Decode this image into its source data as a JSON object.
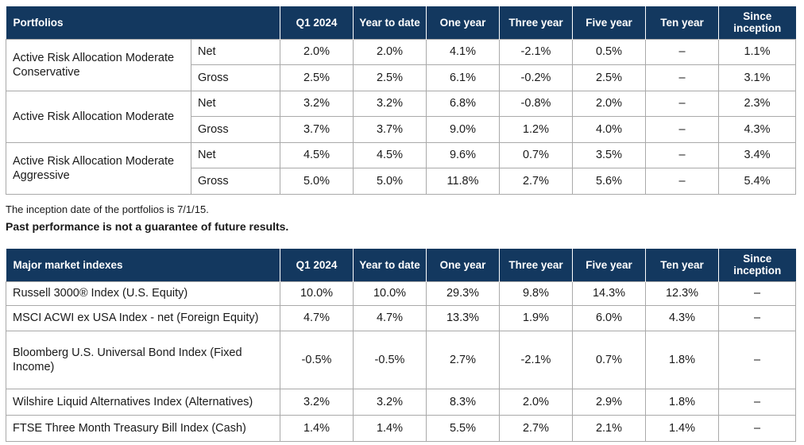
{
  "portfolios": {
    "header": [
      "Portfolios",
      "",
      "Q1 2024",
      "Year to date",
      "One year",
      "Three year",
      "Five year",
      "Ten year",
      "Since inception"
    ],
    "groups": [
      {
        "name": "Active Risk Allocation Moderate Conservative",
        "rows": [
          {
            "type": "Net",
            "values": [
              "2.0%",
              "2.0%",
              "4.1%",
              "-2.1%",
              "0.5%",
              "–",
              "1.1%"
            ]
          },
          {
            "type": "Gross",
            "values": [
              "2.5%",
              "2.5%",
              "6.1%",
              "-0.2%",
              "2.5%",
              "–",
              "3.1%"
            ]
          }
        ]
      },
      {
        "name": "Active Risk Allocation Moderate",
        "rows": [
          {
            "type": "Net",
            "values": [
              "3.2%",
              "3.2%",
              "6.8%",
              "-0.8%",
              "2.0%",
              "–",
              "2.3%"
            ]
          },
          {
            "type": "Gross",
            "values": [
              "3.7%",
              "3.7%",
              "9.0%",
              "1.2%",
              "4.0%",
              "–",
              "4.3%"
            ]
          }
        ]
      },
      {
        "name": "Active Risk Allocation Moderate Aggressive",
        "rows": [
          {
            "type": "Net",
            "values": [
              "4.5%",
              "4.5%",
              "9.6%",
              "0.7%",
              "3.5%",
              "–",
              "3.4%"
            ]
          },
          {
            "type": "Gross",
            "values": [
              "5.0%",
              "5.0%",
              "11.8%",
              "2.7%",
              "5.6%",
              "–",
              "5.4%"
            ]
          }
        ]
      }
    ]
  },
  "notes": {
    "inception": "The inception date of the portfolios is 7/1/15.",
    "disclaimer": "Past performance is not a guarantee of future results."
  },
  "indexes": {
    "header": [
      "Major market indexes",
      "Q1 2024",
      "Year to date",
      "One year",
      "Three year",
      "Five year",
      "Ten year",
      "Since inception"
    ],
    "rows": [
      {
        "name": "Russell 3000® Index (U.S. Equity)",
        "values": [
          "10.0%",
          "10.0%",
          "29.3%",
          "9.8%",
          "14.3%",
          "12.3%",
          "–"
        ]
      },
      {
        "name": "MSCI ACWI ex USA Index - net (Foreign Equity)",
        "values": [
          "4.7%",
          "4.7%",
          "13.3%",
          "1.9%",
          "6.0%",
          "4.3%",
          "–"
        ]
      },
      {
        "name": "Bloomberg U.S. Universal Bond Index (Fixed Income)",
        "values": [
          "-0.5%",
          "-0.5%",
          "2.7%",
          "-2.1%",
          "0.7%",
          "1.8%",
          "–"
        ]
      },
      {
        "name": "Wilshire Liquid Alternatives Index (Alternatives)",
        "values": [
          "3.2%",
          "3.2%",
          "8.3%",
          "2.0%",
          "2.9%",
          "1.8%",
          "–"
        ]
      },
      {
        "name": "FTSE Three Month Treasury Bill Index (Cash)",
        "values": [
          "1.4%",
          "1.4%",
          "5.5%",
          "2.7%",
          "2.1%",
          "1.4%",
          "–"
        ]
      }
    ]
  },
  "colors": {
    "header_bg": "#13385f",
    "header_text": "#ffffff",
    "border": "#a9a9a9"
  }
}
